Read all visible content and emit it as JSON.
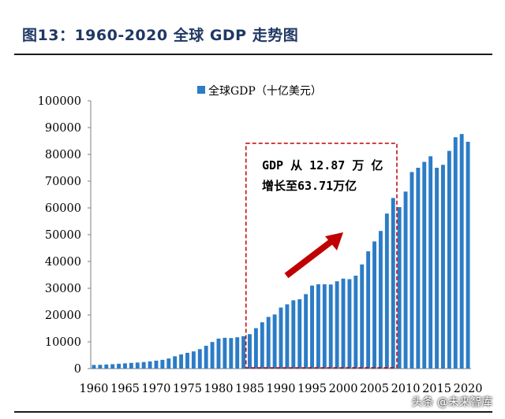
{
  "figure_title": "图13：1960-2020 全球 GDP 走势图",
  "watermark": "头条 @未来智库",
  "colors": {
    "bar": "#2c7cc6",
    "box": "#c00000",
    "arrow": "#c00000",
    "title": "#1f3864"
  },
  "chart_data": {
    "type": "bar",
    "title": "",
    "xlabel": "",
    "ylabel": "",
    "ylim": [
      0,
      100000
    ],
    "yticks": [
      0,
      10000,
      20000,
      30000,
      40000,
      50000,
      60000,
      70000,
      80000,
      90000,
      100000
    ],
    "x_tick_labels": [
      "1960",
      "1965",
      "1970",
      "1975",
      "1980",
      "1985",
      "1990",
      "1995",
      "2000",
      "2005",
      "2010",
      "2015",
      "2020"
    ],
    "legend": {
      "position": "top-center",
      "entries": [
        "全球GDP（十亿美元）"
      ]
    },
    "grid": false,
    "categories": [
      "1960",
      "1961",
      "1962",
      "1963",
      "1964",
      "1965",
      "1966",
      "1967",
      "1968",
      "1969",
      "1970",
      "1971",
      "1972",
      "1973",
      "1974",
      "1975",
      "1976",
      "1977",
      "1978",
      "1979",
      "1980",
      "1981",
      "1982",
      "1983",
      "1984",
      "1985",
      "1986",
      "1987",
      "1988",
      "1989",
      "1990",
      "1991",
      "1992",
      "1993",
      "1994",
      "1995",
      "1996",
      "1997",
      "1998",
      "1999",
      "2000",
      "2001",
      "2002",
      "2003",
      "2004",
      "2005",
      "2006",
      "2007",
      "2008",
      "2009",
      "2010",
      "2011",
      "2012",
      "2013",
      "2014",
      "2015",
      "2016",
      "2017",
      "2018",
      "2019",
      "2020"
    ],
    "series": [
      {
        "name": "全球GDP（十亿美元）",
        "values": [
          1370,
          1420,
          1530,
          1650,
          1800,
          1960,
          2130,
          2260,
          2440,
          2690,
          2960,
          3270,
          3770,
          4600,
          5290,
          5900,
          6420,
          7260,
          8530,
          9930,
          11200,
          11500,
          11400,
          11700,
          12100,
          12870,
          15100,
          17300,
          19300,
          20200,
          22800,
          24000,
          25500,
          25900,
          27800,
          31000,
          31500,
          31500,
          31400,
          32600,
          33600,
          33400,
          34700,
          38900,
          43800,
          47500,
          51400,
          57900,
          63710,
          60300,
          66100,
          73400,
          75000,
          77200,
          79300,
          75000,
          76100,
          81300,
          86400,
          87600,
          84700
        ]
      }
    ],
    "annotations": [
      {
        "type": "text",
        "lines": [
          "GDP 从 12.87 万 亿",
          "增长至63.71万亿"
        ]
      },
      {
        "type": "dashed_box",
        "from_category": "1985",
        "to_category": "2008"
      },
      {
        "type": "arrow"
      }
    ]
  }
}
